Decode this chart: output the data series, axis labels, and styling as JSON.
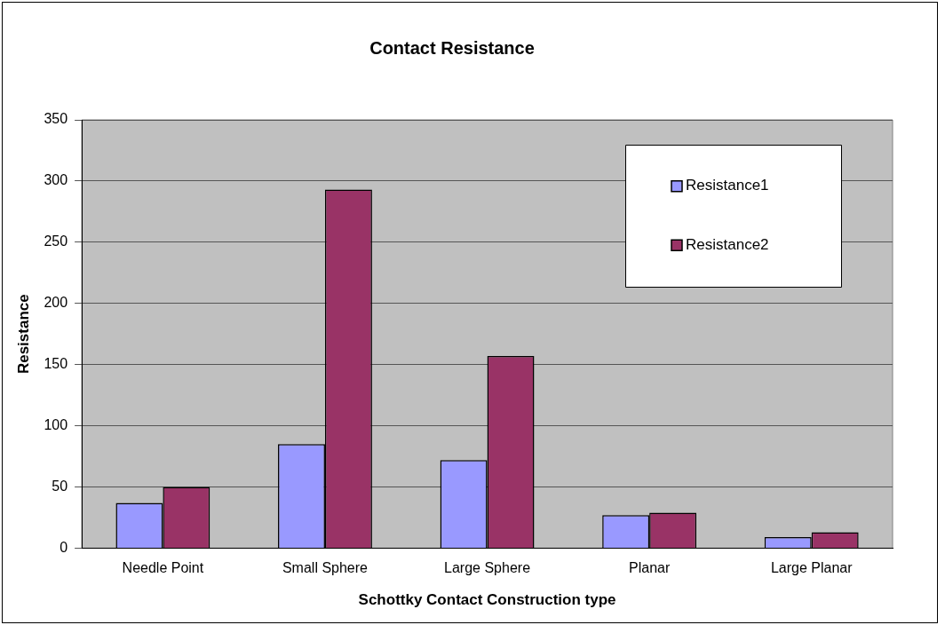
{
  "chart_data": {
    "type": "bar",
    "title": "Contact Resistance",
    "xlabel": "Schottky Contact Construction type",
    "ylabel": "Resistance",
    "categories": [
      "Needle Point",
      "Small Sphere",
      "Large Sphere",
      "Planar",
      "Large Planar"
    ],
    "series": [
      {
        "name": "Resistance1",
        "color": "#9999ff",
        "values": [
          37,
          85,
          72,
          27,
          9
        ]
      },
      {
        "name": "Resistance2",
        "color": "#993366",
        "values": [
          50,
          293,
          157,
          29,
          13
        ]
      }
    ],
    "ylim": [
      0,
      350
    ],
    "yticks": [
      0,
      50,
      100,
      150,
      200,
      250,
      300,
      350
    ],
    "grid": "y",
    "legend": "top right"
  }
}
